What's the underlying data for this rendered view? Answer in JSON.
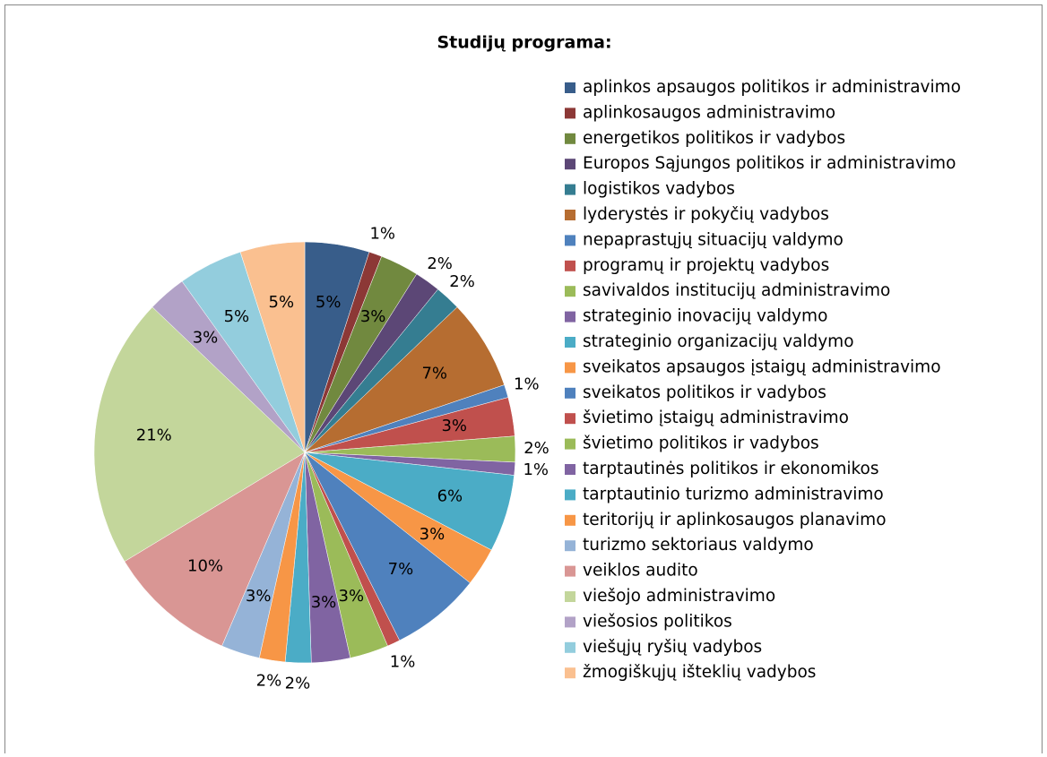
{
  "chart_data": {
    "type": "pie",
    "title": "Studijų programa:",
    "categories": [
      "aplinkos apsaugos politikos ir administravimo",
      "aplinkosaugos administravimo",
      "energetikos politikos ir vadybos",
      "Europos Sąjungos politikos ir administravimo",
      "logistikos vadybos",
      "lyderystės ir pokyčių vadybos",
      "nepaprastųjų situacijų valdymo",
      "programų ir projektų vadybos",
      "savivaldos institucijų administravimo",
      "strateginio inovacijų valdymo",
      "strateginio organizacijų valdymo",
      "sveikatos apsaugos įstaigų administravimo",
      "sveikatos politikos ir vadybos",
      "švietimo įstaigų administravimo",
      "švietimo politikos ir vadybos",
      "tarptautinės politikos ir ekonomikos",
      "tarptautinio turizmo administravimo",
      "teritorijų ir aplinkosaugos planavimo",
      "turizmo sektoriaus valdymo",
      "veiklos audito",
      "viešojo administravimo",
      "viešosios politikos",
      "viešųjų ryšių vadybos",
      "žmogiškųjų išteklių vadybos"
    ],
    "values": [
      5,
      1,
      3,
      2,
      2,
      7,
      1,
      3,
      2,
      1,
      6,
      3,
      7,
      1,
      3,
      3,
      2,
      2,
      3,
      10,
      21,
      3,
      5,
      5
    ],
    "value_labels": [
      "5%",
      "1%",
      "3%",
      "2%",
      "2%",
      "7%",
      "1%",
      "3%",
      "2%",
      "1%",
      "6%",
      "3%",
      "7%",
      "1%",
      "3%",
      "3%",
      "2%",
      "2%",
      "3%",
      "10%",
      "21%",
      "3%",
      "5%",
      "5%"
    ],
    "colors": [
      "#385d8a",
      "#8c3836",
      "#71893f",
      "#5c4776",
      "#357d91",
      "#b66d31",
      "#4f81bd",
      "#c0504d",
      "#9bbb59",
      "#8064a2",
      "#4bacc6",
      "#f79646",
      "#4f81bd",
      "#c0504d",
      "#9bbb59",
      "#8064a2",
      "#4bacc6",
      "#f79646",
      "#95b3d7",
      "#d99694",
      "#c3d69b",
      "#b2a2c7",
      "#93cddd",
      "#fac090"
    ],
    "legend": "right"
  }
}
